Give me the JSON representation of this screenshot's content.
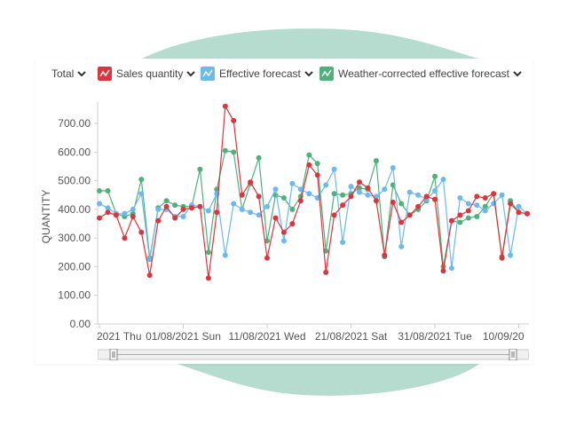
{
  "toolbar": {
    "total_label": "Total",
    "series_toggles": [
      {
        "label": "Sales quantity",
        "icon": "line-chart-icon",
        "color": "#d9363e"
      },
      {
        "label": "Effective forecast",
        "icon": "line-chart-icon",
        "color": "#6cb9ec"
      },
      {
        "label": "Weather-corrected effective forecast",
        "icon": "line-chart-icon",
        "color": "#4fb07c"
      }
    ]
  },
  "colors": {
    "sales": "#d9363e",
    "forecast": "#6cb9ec",
    "weather": "#4fb07c",
    "background_blob": "#b6dccf",
    "axis_text": "#555555"
  },
  "chart_data": {
    "type": "line",
    "title": "",
    "xlabel": "",
    "ylabel": "QUANTITY",
    "ylim": [
      0,
      750
    ],
    "yticks": [
      "0.00",
      "100.00",
      "200.00",
      "300.00",
      "400.00",
      "500.00",
      "600.00",
      "700.00"
    ],
    "x_tick_labels": [
      "2021 Thu",
      "01/08/2021 Sun",
      "11/08/2021 Wed",
      "21/08/2021 Sat",
      "31/08/2021 Tue",
      "10/09/20"
    ],
    "grid": false,
    "legend": "top",
    "x": [
      "22/07",
      "23/07",
      "24/07",
      "25/07",
      "26/07",
      "27/07",
      "28/07",
      "29/07",
      "30/07",
      "31/07",
      "01/08",
      "02/08",
      "03/08",
      "04/08",
      "05/08",
      "06/08",
      "07/08",
      "08/08",
      "09/08",
      "10/08",
      "11/08",
      "12/08",
      "13/08",
      "14/08",
      "15/08",
      "16/08",
      "17/08",
      "18/08",
      "19/08",
      "20/08",
      "21/08",
      "22/08",
      "23/08",
      "24/08",
      "25/08",
      "26/08",
      "27/08",
      "28/08",
      "29/08",
      "30/08",
      "31/08",
      "01/09",
      "02/09",
      "03/09",
      "04/09",
      "05/09",
      "06/09",
      "07/09",
      "08/09",
      "09/09",
      "10/09",
      "11/09"
    ],
    "series": [
      {
        "name": "Sales quantity",
        "values": [
          370,
          390,
          380,
          300,
          375,
          320,
          170,
          360,
          410,
          370,
          400,
          405,
          410,
          160,
          390,
          760,
          710,
          450,
          495,
          445,
          230,
          370,
          320,
          350,
          430,
          555,
          520,
          180,
          380,
          415,
          445,
          495,
          475,
          430,
          240,
          425,
          355,
          380,
          410,
          445,
          435,
          185,
          360,
          380,
          395,
          445,
          440,
          455,
          230,
          420,
          390,
          385
        ]
      },
      {
        "name": "Effective forecast",
        "values": [
          420,
          405,
          385,
          385,
          400,
          455,
          225,
          400,
          400,
          375,
          375,
          415,
          410,
          395,
          455,
          240,
          420,
          400,
          390,
          380,
          410,
          470,
          290,
          490,
          470,
          455,
          440,
          485,
          540,
          285,
          480,
          460,
          450,
          445,
          470,
          545,
          270,
          460,
          450,
          435,
          465,
          505,
          195,
          440,
          420,
          415,
          395,
          420,
          450,
          240,
          410,
          385
        ]
      },
      {
        "name": "Weather-corrected effective forecast",
        "values": [
          465,
          465,
          385,
          375,
          385,
          505,
          230,
          405,
          430,
          415,
          410,
          410,
          540,
          250,
          470,
          605,
          600,
          400,
          490,
          580,
          290,
          450,
          440,
          400,
          445,
          590,
          560,
          255,
          455,
          450,
          455,
          475,
          470,
          570,
          235,
          485,
          420,
          380,
          400,
          430,
          515,
          200,
          360,
          355,
          370,
          375,
          410,
          455,
          235,
          430,
          390,
          385
        ]
      }
    ]
  }
}
